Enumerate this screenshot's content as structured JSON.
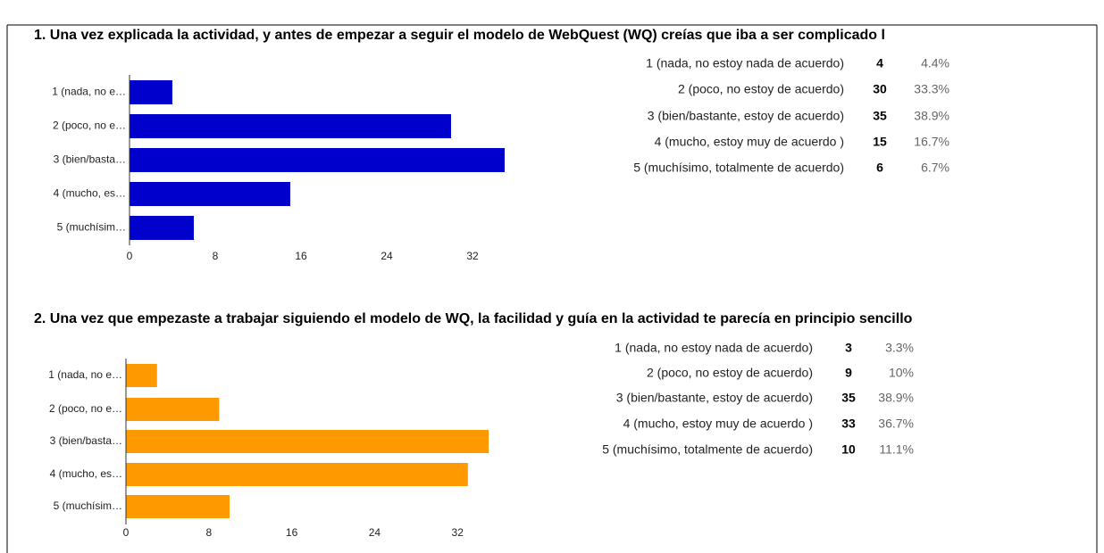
{
  "chart_data": [
    {
      "type": "bar",
      "orientation": "horizontal",
      "title": "1. Una vez explicada la actividad, y antes de empezar a seguir el modelo de WebQuest (WQ) creías que iba a ser complicado l",
      "categories": [
        "1 (nada, no e…",
        "2 (poco, no e…",
        "3 (bien/basta…",
        "4 (mucho, es…",
        "5 (muchísim…"
      ],
      "values": [
        4,
        30,
        35,
        15,
        6
      ],
      "color": "#0000cc",
      "xlim": [
        0,
        40
      ],
      "xticks": [
        0,
        8,
        16,
        24,
        32
      ],
      "table": {
        "rows": [
          [
            "1 (nada, no estoy nada de acuerdo)",
            4,
            "4.4%"
          ],
          [
            "2 (poco, no estoy de acuerdo)",
            30,
            "33.3%"
          ],
          [
            "3 (bien/bastante, estoy de acuerdo)",
            35,
            "38.9%"
          ],
          [
            "4 (mucho, estoy muy de acuerdo )",
            15,
            "16.7%"
          ],
          [
            "5 (muchísimo, totalmente de acuerdo)",
            6,
            "6.7%"
          ]
        ]
      }
    },
    {
      "type": "bar",
      "orientation": "horizontal",
      "title": "2. Una vez que empezaste a trabajar siguiendo el modelo de WQ, la facilidad y guía en la actividad te parecía en principio sencillo",
      "categories": [
        "1 (nada, no e…",
        "2 (poco, no e…",
        "3 (bien/basta…",
        "4 (mucho, es…",
        "5 (muchísim…"
      ],
      "values": [
        3,
        9,
        35,
        33,
        10
      ],
      "color": "#ff9900",
      "xlim": [
        0,
        40
      ],
      "xticks": [
        0,
        8,
        16,
        24,
        32
      ],
      "table": {
        "rows": [
          [
            "1 (nada, no estoy nada de acuerdo)",
            3,
            "3.3%"
          ],
          [
            "2 (poco, no estoy de acuerdo)",
            9,
            "10%"
          ],
          [
            "3 (bien/bastante, estoy de acuerdo)",
            35,
            "38.9%"
          ],
          [
            "4 (mucho, estoy muy de acuerdo )",
            33,
            "36.7%"
          ],
          [
            "5 (muchísimo, totalmente de acuerdo)",
            10,
            "11.1%"
          ]
        ]
      }
    }
  ]
}
